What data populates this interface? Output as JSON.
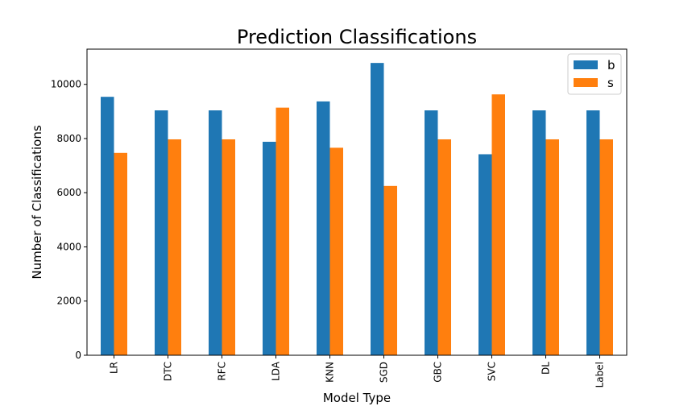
{
  "chart_data": {
    "type": "bar",
    "title": "Prediction Classifications",
    "xlabel": "Model Type",
    "ylabel": "Number of Classifications",
    "categories": [
      "LR",
      "DTC",
      "RFC",
      "LDA",
      "KNN",
      "SGD",
      "GBC",
      "SVC",
      "DL",
      "Label"
    ],
    "series": [
      {
        "name": "b",
        "color": "#1f77b4",
        "values": [
          9540,
          9040,
          9040,
          7880,
          9370,
          10790,
          9040,
          7420,
          9040,
          9040
        ]
      },
      {
        "name": "s",
        "color": "#ff7f0e",
        "values": [
          7470,
          7970,
          7970,
          9140,
          7660,
          6250,
          7970,
          9630,
          7970,
          7970
        ]
      }
    ],
    "ylim": [
      0,
      11300
    ],
    "yticks": [
      0,
      2000,
      4000,
      6000,
      8000,
      10000
    ],
    "legend_position": "top-right",
    "grid": false
  }
}
